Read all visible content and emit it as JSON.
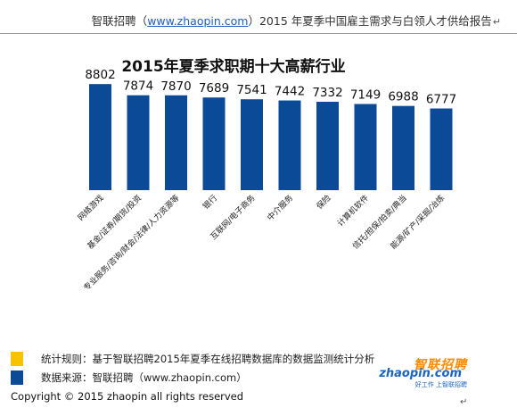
{
  "header": {
    "brand": "智联招聘（",
    "link": "www.zhaopin.com",
    "rest": "）2015 年夏季中国雇主需求与白领人才供给报告",
    "mark": "↵"
  },
  "chart_data": {
    "type": "bar",
    "title": "2015年夏季求职期十大高薪行业",
    "categories": [
      "网络游戏",
      "基金/证券/期货/投资",
      "专业服务/咨询/财会/法律/人力资源等",
      "银行",
      "互联网/电子商务",
      "中介服务",
      "保险",
      "计算机软件",
      "信托/担保/拍卖/典当",
      "能源/矿产/采掘/冶炼"
    ],
    "values": [
      8802,
      7874,
      7870,
      7689,
      7541,
      7442,
      7332,
      7149,
      6988,
      6777
    ],
    "ylim": [
      0,
      10000
    ],
    "bar_color": "#0b4a97",
    "grid": false
  },
  "legend": {
    "rule_color": "#f7c300",
    "rule_text": "统计规则：基于智联招聘2015年夏季在线招聘数据库的数据监测统计分析",
    "source_color": "#0b4a97",
    "source_text": "数据来源：智联招聘（www.zhaopin.com）"
  },
  "logo": {
    "cn": "智联招聘",
    "en": "zhaopin.com",
    "tag": "好工作 上智联招聘"
  },
  "footer": {
    "copyright": "Copyright  ©  2015 zhaopin all rights reserved",
    "mark": "↵"
  }
}
